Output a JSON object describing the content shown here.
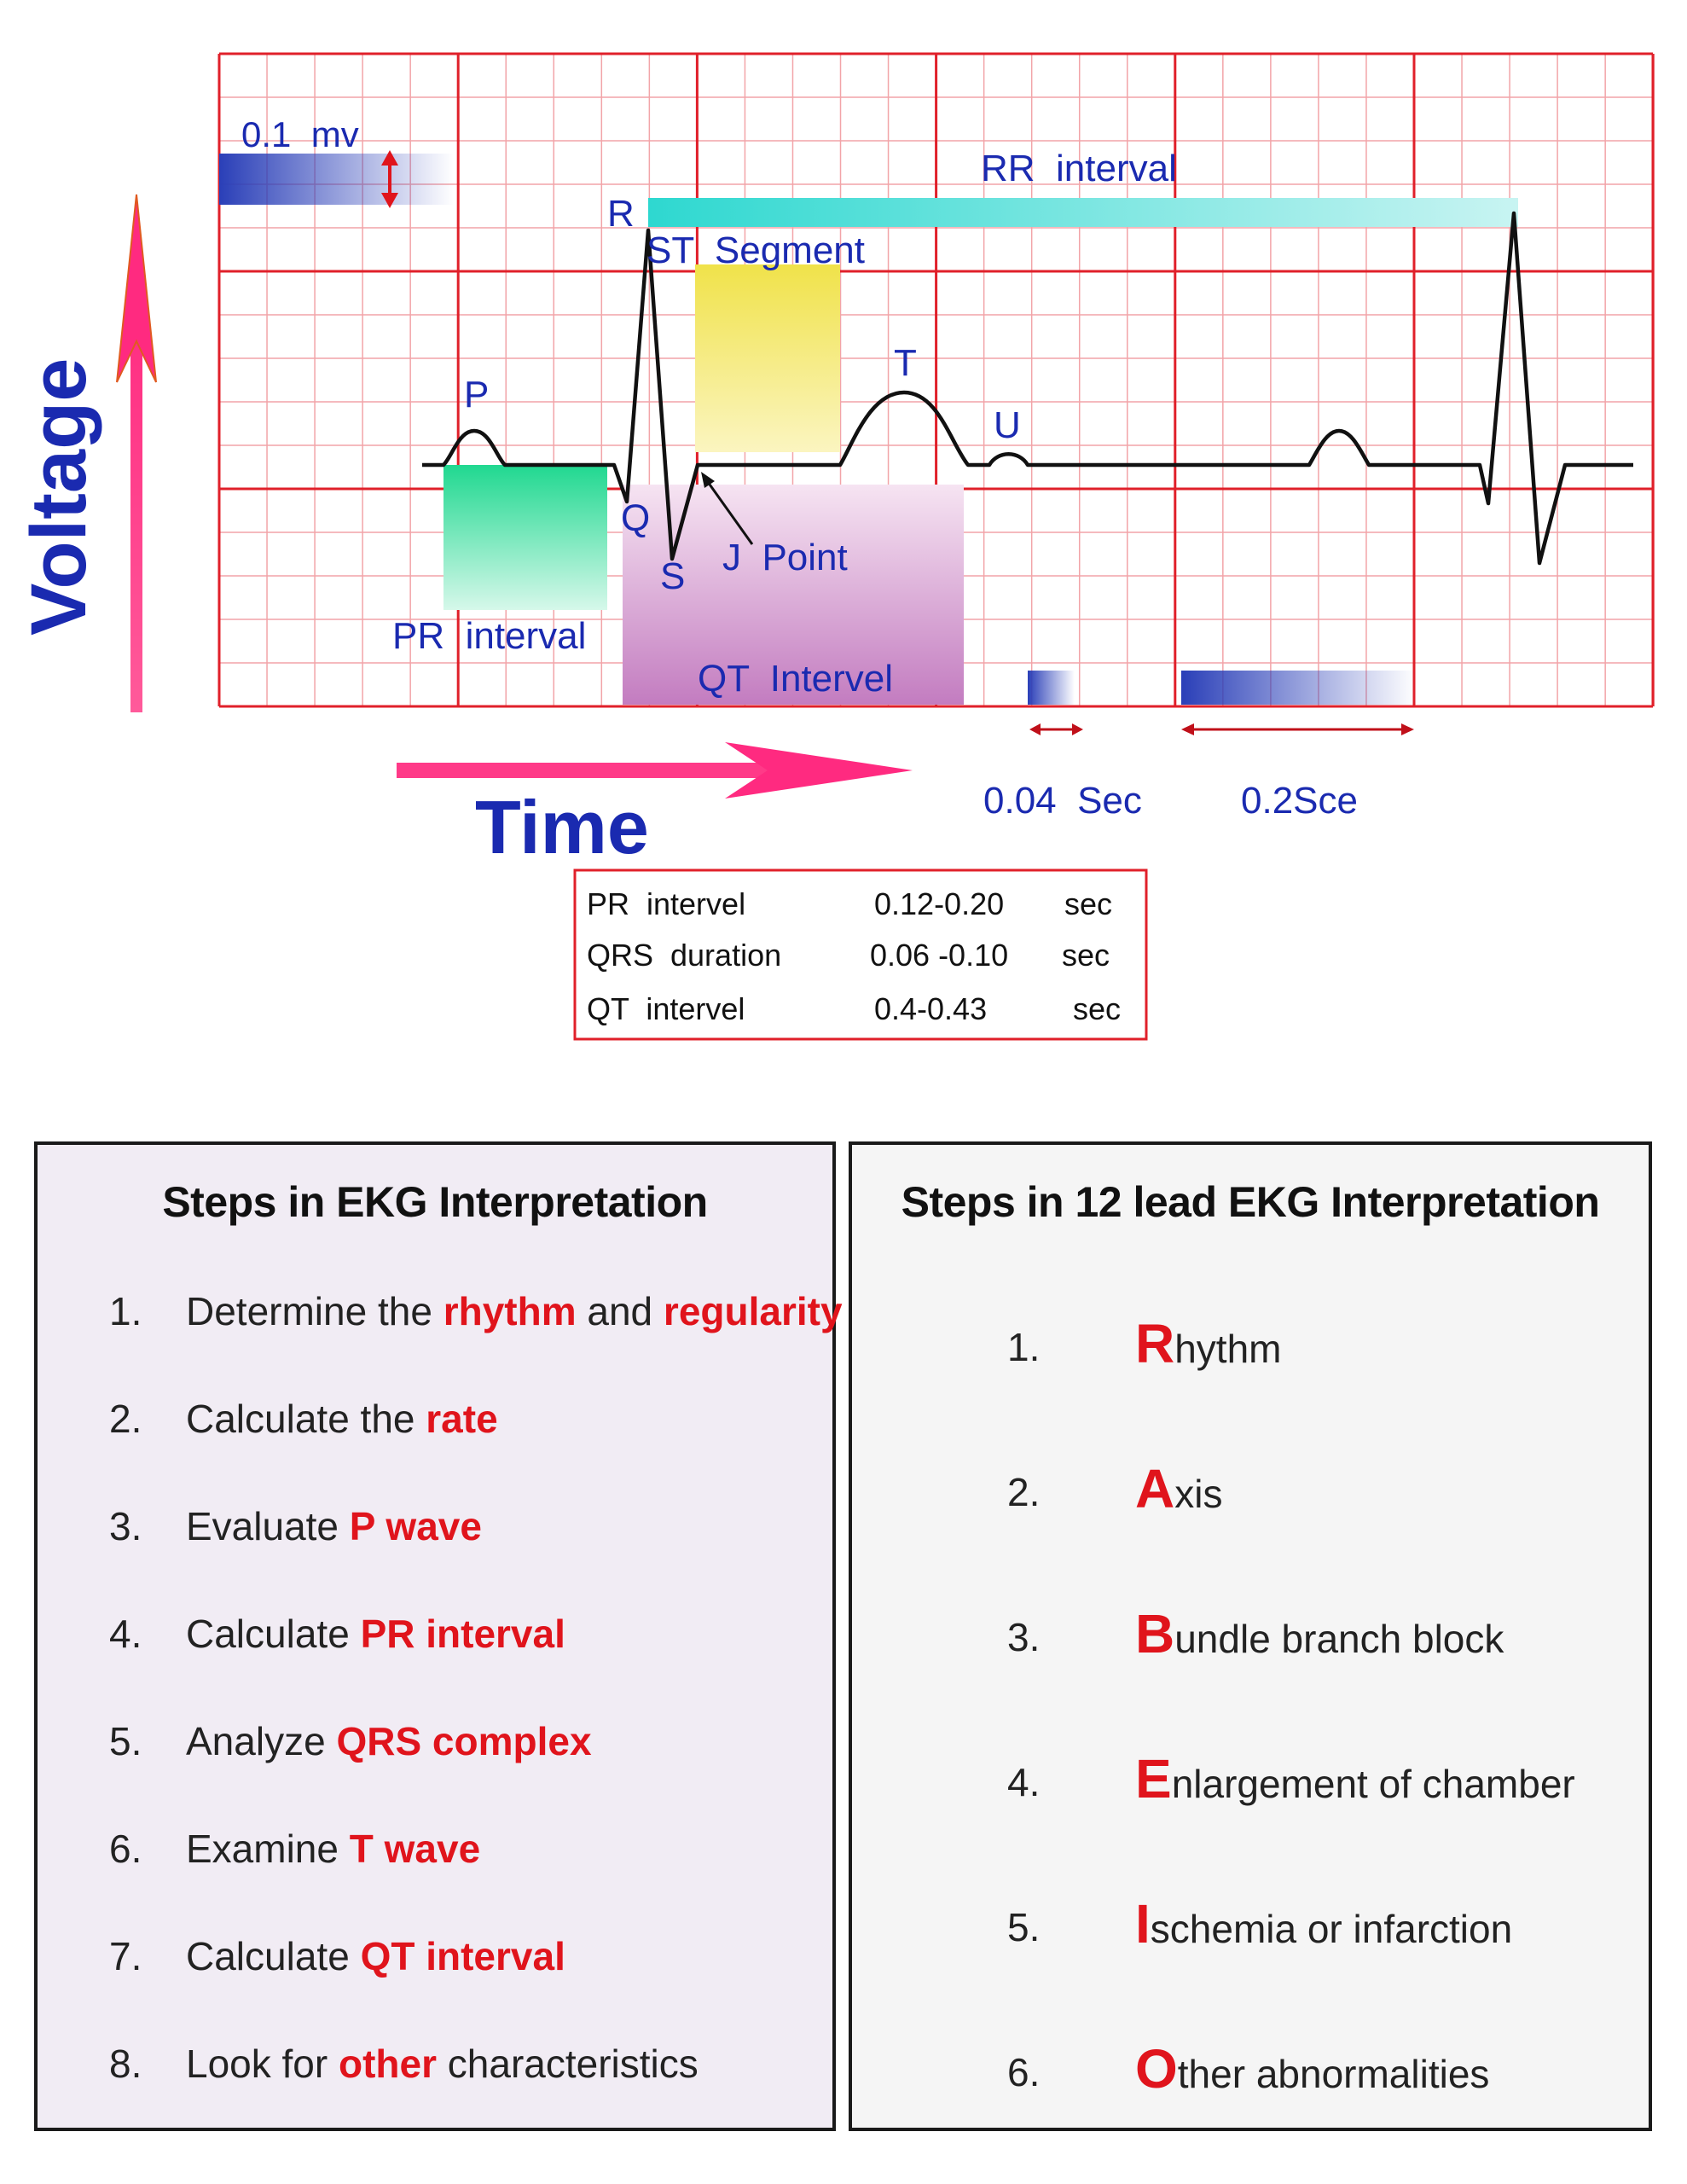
{
  "diagram": {
    "axis_voltage": "Voltage",
    "axis_time": "Time",
    "scale_voltage": "0.1  mv",
    "label_rr": "RR  interval",
    "label_r": "R",
    "label_st": "ST  Segment",
    "label_p": "P",
    "label_t": "T",
    "label_u": "U",
    "label_q": "Q",
    "label_s": "S",
    "label_j": "J  Point",
    "label_pr": "PR  interval",
    "label_qt": "QT  Intervel",
    "label_004": "0.04  Sec",
    "label_02": "0.2Sce"
  },
  "table": {
    "rows": [
      {
        "name": "PR  intervel",
        "value": "0.12-0.20",
        "unit": "sec"
      },
      {
        "name": "QRS  duration",
        "value": "0.06 -0.10",
        "unit": "sec"
      },
      {
        "name": "QT  intervel",
        "value": "0.4-0.43",
        "unit": "sec"
      }
    ]
  },
  "colors": {
    "grid_major": "#e0202a",
    "grid_minor": "#f2a4a8",
    "label_blue": "#1a2ab0",
    "arrow_pink": "#f0287a",
    "highlight_red": "#e0141c"
  },
  "box1": {
    "title": "Steps in EKG Interpretation",
    "steps": [
      {
        "num": "1.",
        "pre": "Determine the ",
        "hl1": "rhythm",
        "mid": " and ",
        "hl2": "regularity",
        "post": ""
      },
      {
        "num": "2.",
        "pre": "Calculate the ",
        "hl1": "rate",
        "mid": "",
        "hl2": "",
        "post": ""
      },
      {
        "num": "3.",
        "pre": "Evaluate ",
        "hl1": "P wave",
        "mid": "",
        "hl2": "",
        "post": ""
      },
      {
        "num": "4.",
        "pre": "Calculate ",
        "hl1": "PR interval",
        "mid": "",
        "hl2": "",
        "post": ""
      },
      {
        "num": "5.",
        "pre": "Analyze ",
        "hl1": "QRS complex",
        "mid": "",
        "hl2": "",
        "post": ""
      },
      {
        "num": "6.",
        "pre": "Examine ",
        "hl1": "T wave",
        "mid": "",
        "hl2": "",
        "post": ""
      },
      {
        "num": "7.",
        "pre": "Calculate ",
        "hl1": "QT interval",
        "mid": "",
        "hl2": "",
        "post": ""
      },
      {
        "num": "8.",
        "pre": "Look for ",
        "hl1": "other",
        "mid": " characteristics",
        "hl2": "",
        "post": ""
      }
    ]
  },
  "box2": {
    "title": "Steps in 12 lead EKG Interpretation",
    "steps": [
      {
        "num": "1.",
        "letter": "R",
        "rest": "hythm"
      },
      {
        "num": "2.",
        "letter": "A",
        "rest": "xis"
      },
      {
        "num": "3.",
        "letter": "B",
        "rest": "undle branch block"
      },
      {
        "num": "4.",
        "letter": "E",
        "rest": "nlargement of chamber"
      },
      {
        "num": "5.",
        "letter": "I",
        "rest": "schemia or infarction"
      },
      {
        "num": "6.",
        "letter": "O",
        "rest": "ther abnormalities"
      }
    ]
  }
}
